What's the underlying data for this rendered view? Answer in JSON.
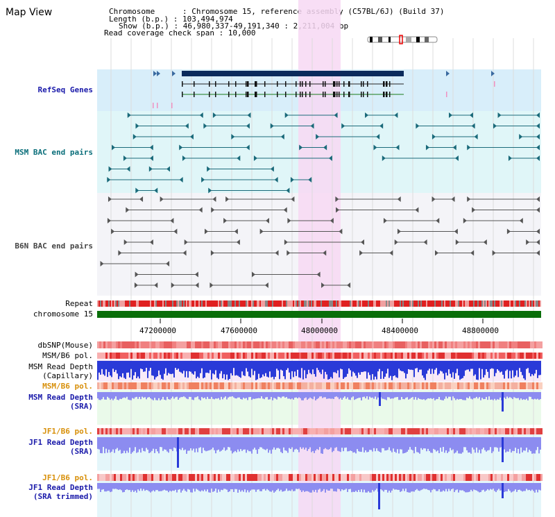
{
  "header": {
    "title": "Map View",
    "chromosome_line": "Chromosome      : Chromosome 15, reference assembly (C57BL/6J) (Build 37)",
    "length_line": "Length (b.p.) : 103,494,974",
    "show_line": "Show (b.p.) : 46,980,337-49,191,340 : 2,211,004 bp",
    "coverage_line": "Read coverage check span : 10,000"
  },
  "tracks": {
    "refseq": "RefSeq Genes",
    "msm_bac": "MSM BAC end pairs",
    "b6n_bac": "B6N BAC end pairs",
    "repeat": "Repeat",
    "chromosome": "chromosome 15",
    "dbsnp": "dbSNP(Mouse)",
    "msm_b6_pol_1": "MSM/B6 pol.",
    "msm_read_depth_cap_1": "MSM Read Depth",
    "msm_read_depth_cap_2": "(Capillary)",
    "msm_b6_pol_2": "MSM/B6 pol.",
    "msm_read_depth_sra_1": "MSM Read Depth",
    "msm_read_depth_sra_2": "(SRA)",
    "jf1_b6_pol_1": "JF1/B6 pol.",
    "jf1_read_depth_sra_1": "JF1 Read Depth",
    "jf1_read_depth_sra_2": "(SRA)",
    "jf1_b6_pol_2": "JF1/B6 pol.",
    "jf1_read_depth_trim_1": "JF1 Read Depth",
    "jf1_read_depth_trim_2": "(SRA trimmed)"
  },
  "axis": {
    "ticks": [
      "47200000",
      "47600000",
      "48000000",
      "48400000",
      "48800000"
    ]
  },
  "colors": {
    "refseq_bg": "#d8eefa",
    "msm_bg": "#e0f6f8",
    "b6n_bg": "#f4f4f8",
    "highlight": "#f7d8f3",
    "gene_dark": "#0a2a5c",
    "chromosome_bar": "#0a6e0a",
    "depth_blue": "#2a3ad8",
    "depth_light": "#8c8cf0",
    "msm_bac_line": "#1a6a7a",
    "b6n_line": "#555555"
  }
}
